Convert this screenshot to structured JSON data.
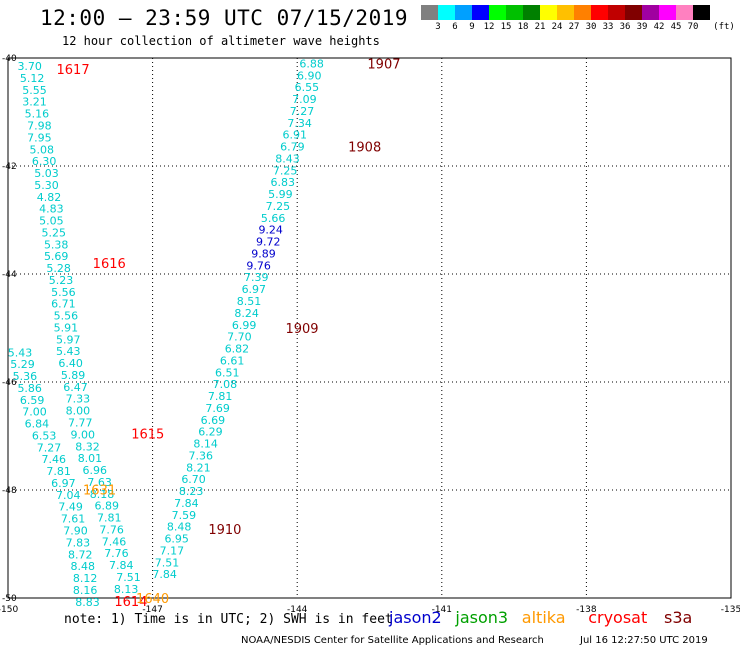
{
  "header": {
    "title": "12:00 – 23:59 UTC 07/15/2019",
    "subtitle": "12 hour collection of altimeter wave heights"
  },
  "colorbar": {
    "unit_label": "(ft)",
    "swatches": [
      {
        "color": "#808080",
        "label": "3"
      },
      {
        "color": "#00ffff",
        "label": "6"
      },
      {
        "color": "#00a0ff",
        "label": "9"
      },
      {
        "color": "#0000ff",
        "label": "12"
      },
      {
        "color": "#00ff00",
        "label": "15"
      },
      {
        "color": "#00c000",
        "label": "18"
      },
      {
        "color": "#008000",
        "label": "21"
      },
      {
        "color": "#ffff00",
        "label": "24"
      },
      {
        "color": "#ffc000",
        "label": "27"
      },
      {
        "color": "#ff8000",
        "label": "30"
      },
      {
        "color": "#ff0000",
        "label": "33"
      },
      {
        "color": "#c00000",
        "label": "36"
      },
      {
        "color": "#800000",
        "label": "39"
      },
      {
        "color": "#a000a0",
        "label": "42"
      },
      {
        "color": "#ff00ff",
        "label": "45"
      },
      {
        "color": "#ff80c0",
        "label": "70"
      },
      {
        "color": "#000000",
        "label": ""
      }
    ]
  },
  "map": {
    "lat_labels": [
      "-40",
      "-42",
      "-44",
      "-46",
      "-48",
      "-50"
    ],
    "lon_labels": [
      "-150",
      "-147",
      "-144",
      "-141",
      "-138",
      "-135"
    ],
    "lon_range": [
      -150,
      -135
    ],
    "lat_range": [
      -50,
      -40
    ],
    "colors": {
      "cyan": "#00cccc",
      "blue": "#0000cc",
      "red": "#ff0000",
      "darkred": "#800000",
      "orange": "#ff9900"
    },
    "tracks": [
      {
        "color": "cyan",
        "points": [
          {
            "lon": -149.55,
            "lat": -40.15,
            "v": "3.70"
          },
          {
            "lon": -149.5,
            "lat": -40.37,
            "v": "5.12"
          },
          {
            "lon": -149.45,
            "lat": -40.59,
            "v": "5.55"
          },
          {
            "lon": -149.45,
            "lat": -40.81,
            "v": "3.21"
          },
          {
            "lon": -149.4,
            "lat": -41.03,
            "v": "5.16"
          },
          {
            "lon": -149.35,
            "lat": -41.25,
            "v": "7.98"
          },
          {
            "lon": -149.35,
            "lat": -41.47,
            "v": "7.95"
          },
          {
            "lon": -149.3,
            "lat": -41.69,
            "v": "5.08"
          },
          {
            "lon": -149.25,
            "lat": -41.91,
            "v": "6.30"
          },
          {
            "lon": -149.2,
            "lat": -42.13,
            "v": "5.03"
          },
          {
            "lon": -149.2,
            "lat": -42.35,
            "v": "5.30"
          },
          {
            "lon": -149.15,
            "lat": -42.57,
            "v": "4.82"
          },
          {
            "lon": -149.1,
            "lat": -42.79,
            "v": "4.83"
          },
          {
            "lon": -149.1,
            "lat": -43.01,
            "v": "5.05"
          },
          {
            "lon": -149.05,
            "lat": -43.23,
            "v": "5.25"
          },
          {
            "lon": -149.0,
            "lat": -43.45,
            "v": "5.38"
          },
          {
            "lon": -149.0,
            "lat": -43.67,
            "v": "5.69"
          },
          {
            "lon": -148.95,
            "lat": -43.89,
            "v": "5.28"
          },
          {
            "lon": -148.9,
            "lat": -44.11,
            "v": "5.23"
          },
          {
            "lon": -148.85,
            "lat": -44.33,
            "v": "5.56"
          },
          {
            "lon": -148.85,
            "lat": -44.55,
            "v": "6.71"
          },
          {
            "lon": -148.8,
            "lat": -44.77,
            "v": "5.56"
          },
          {
            "lon": -148.8,
            "lat": -44.99,
            "v": "5.91"
          },
          {
            "lon": -148.75,
            "lat": -45.21,
            "v": "5.97"
          },
          {
            "lon": -148.75,
            "lat": -45.43,
            "v": "5.43"
          },
          {
            "lon": -148.7,
            "lat": -45.65,
            "v": "6.40"
          },
          {
            "lon": -148.65,
            "lat": -45.87,
            "v": "5.89"
          },
          {
            "lon": -148.6,
            "lat": -46.09,
            "v": "6.47"
          },
          {
            "lon": -148.55,
            "lat": -46.31,
            "v": "7.33"
          },
          {
            "lon": -148.55,
            "lat": -46.53,
            "v": "8.00"
          },
          {
            "lon": -148.5,
            "lat": -46.75,
            "v": "7.77"
          },
          {
            "lon": -148.45,
            "lat": -46.97,
            "v": "9.00"
          },
          {
            "lon": -148.35,
            "lat": -47.19,
            "v": "8.32"
          },
          {
            "lon": -148.3,
            "lat": -47.41,
            "v": "8.01"
          },
          {
            "lon": -148.2,
            "lat": -47.63,
            "v": "6.96"
          },
          {
            "lon": -148.1,
            "lat": -47.85,
            "v": "7.63"
          },
          {
            "lon": -148.05,
            "lat": -48.07,
            "v": "8.18"
          },
          {
            "lon": -147.95,
            "lat": -48.29,
            "v": "6.89"
          },
          {
            "lon": -147.9,
            "lat": -48.51,
            "v": "7.81"
          },
          {
            "lon": -147.85,
            "lat": -48.73,
            "v": "7.76"
          },
          {
            "lon": -147.8,
            "lat": -48.95,
            "v": "7.46"
          },
          {
            "lon": -147.75,
            "lat": -49.17,
            "v": "7.76"
          },
          {
            "lon": -147.65,
            "lat": -49.39,
            "v": "7.84"
          },
          {
            "lon": -147.5,
            "lat": -49.61,
            "v": "7.51"
          },
          {
            "lon": -147.55,
            "lat": -49.83,
            "v": "8.13"
          }
        ]
      },
      {
        "color": "cyan",
        "points": [
          {
            "lon": -149.75,
            "lat": -45.45,
            "v": "5.43"
          },
          {
            "lon": -149.7,
            "lat": -45.67,
            "v": "5.29"
          },
          {
            "lon": -149.65,
            "lat": -45.89,
            "v": "5.36"
          },
          {
            "lon": -149.55,
            "lat": -46.11,
            "v": "5.86"
          },
          {
            "lon": -149.5,
            "lat": -46.33,
            "v": "6.59"
          },
          {
            "lon": -149.45,
            "lat": -46.55,
            "v": "7.00"
          },
          {
            "lon": -149.4,
            "lat": -46.77,
            "v": "6.84"
          },
          {
            "lon": -149.25,
            "lat": -46.99,
            "v": "6.53"
          },
          {
            "lon": -149.15,
            "lat": -47.21,
            "v": "7.27"
          },
          {
            "lon": -149.05,
            "lat": -47.43,
            "v": "7.46"
          },
          {
            "lon": -148.95,
            "lat": -47.65,
            "v": "7.81"
          },
          {
            "lon": -148.85,
            "lat": -47.87,
            "v": "6.97"
          },
          {
            "lon": -148.75,
            "lat": -48.09,
            "v": "7.04"
          },
          {
            "lon": -148.7,
            "lat": -48.31,
            "v": "7.49"
          },
          {
            "lon": -148.65,
            "lat": -48.53,
            "v": "7.61"
          },
          {
            "lon": -148.6,
            "lat": -48.75,
            "v": "7.90"
          },
          {
            "lon": -148.55,
            "lat": -48.97,
            "v": "7.83"
          },
          {
            "lon": -148.5,
            "lat": -49.19,
            "v": "8.72"
          },
          {
            "lon": -148.45,
            "lat": -49.41,
            "v": "8.48"
          },
          {
            "lon": -148.4,
            "lat": -49.63,
            "v": "8.12"
          },
          {
            "lon": -148.4,
            "lat": -49.85,
            "v": "8.16"
          },
          {
            "lon": -148.35,
            "lat": -50.07,
            "v": "8.83"
          }
        ]
      },
      {
        "color": "cyan",
        "points": [
          {
            "lon": -143.7,
            "lat": -40.1,
            "v": "6.88"
          },
          {
            "lon": -143.75,
            "lat": -40.32,
            "v": "6.90"
          },
          {
            "lon": -143.8,
            "lat": -40.54,
            "v": "6.55"
          },
          {
            "lon": -143.85,
            "lat": -40.76,
            "v": "7.09"
          },
          {
            "lon": -143.9,
            "lat": -40.98,
            "v": "7.27"
          },
          {
            "lon": -143.95,
            "lat": -41.2,
            "v": "7.34"
          },
          {
            "lon": -144.05,
            "lat": -41.42,
            "v": "6.91"
          },
          {
            "lon": -144.1,
            "lat": -41.64,
            "v": "6.79"
          },
          {
            "lon": -144.2,
            "lat": -41.86,
            "v": "8.43"
          },
          {
            "lon": -144.25,
            "lat": -42.08,
            "v": "7.25"
          },
          {
            "lon": -144.3,
            "lat": -42.3,
            "v": "6.83"
          },
          {
            "lon": -144.35,
            "lat": -42.52,
            "v": "5.99"
          },
          {
            "lon": -144.4,
            "lat": -42.74,
            "v": "7.25"
          },
          {
            "lon": -144.5,
            "lat": -42.96,
            "v": "5.66"
          }
        ]
      },
      {
        "color": "blue",
        "points": [
          {
            "lon": -144.55,
            "lat": -43.18,
            "v": "9.24"
          },
          {
            "lon": -144.6,
            "lat": -43.4,
            "v": "9.72"
          },
          {
            "lon": -144.7,
            "lat": -43.62,
            "v": "9.89"
          },
          {
            "lon": -144.8,
            "lat": -43.84,
            "v": "9.76"
          }
        ]
      },
      {
        "color": "cyan",
        "points": [
          {
            "lon": -144.85,
            "lat": -44.06,
            "v": "7.39"
          },
          {
            "lon": -144.9,
            "lat": -44.28,
            "v": "6.97"
          },
          {
            "lon": -145.0,
            "lat": -44.5,
            "v": "8.51"
          },
          {
            "lon": -145.05,
            "lat": -44.72,
            "v": "8.24"
          },
          {
            "lon": -145.1,
            "lat": -44.94,
            "v": "6.99"
          },
          {
            "lon": -145.2,
            "lat": -45.16,
            "v": "7.70"
          },
          {
            "lon": -145.25,
            "lat": -45.38,
            "v": "6.82"
          },
          {
            "lon": -145.35,
            "lat": -45.6,
            "v": "6.61"
          },
          {
            "lon": -145.45,
            "lat": -45.82,
            "v": "6.51"
          },
          {
            "lon": -145.5,
            "lat": -46.04,
            "v": "7.08"
          },
          {
            "lon": -145.6,
            "lat": -46.26,
            "v": "7.81"
          },
          {
            "lon": -145.65,
            "lat": -46.48,
            "v": "7.69"
          },
          {
            "lon": -145.75,
            "lat": -46.7,
            "v": "6.69"
          },
          {
            "lon": -145.8,
            "lat": -46.92,
            "v": "6.29"
          },
          {
            "lon": -145.9,
            "lat": -47.14,
            "v": "8.14"
          },
          {
            "lon": -146.0,
            "lat": -47.36,
            "v": "7.36"
          },
          {
            "lon": -146.05,
            "lat": -47.58,
            "v": "8.21"
          },
          {
            "lon": -146.15,
            "lat": -47.8,
            "v": "6.70"
          },
          {
            "lon": -146.2,
            "lat": -48.02,
            "v": "8.23"
          },
          {
            "lon": -146.3,
            "lat": -48.24,
            "v": "7.84"
          },
          {
            "lon": -146.35,
            "lat": -48.46,
            "v": "7.59"
          },
          {
            "lon": -146.45,
            "lat": -48.68,
            "v": "8.48"
          },
          {
            "lon": -146.5,
            "lat": -48.9,
            "v": "6.95"
          },
          {
            "lon": -146.6,
            "lat": -49.12,
            "v": "7.17"
          },
          {
            "lon": -146.7,
            "lat": -49.34,
            "v": "7.51"
          },
          {
            "lon": -146.75,
            "lat": -49.56,
            "v": "7.84"
          }
        ]
      }
    ],
    "time_labels": [
      {
        "lon": -148.65,
        "lat": -40.2,
        "v": "1617",
        "color": "red"
      },
      {
        "lon": -147.9,
        "lat": -43.8,
        "v": "1616",
        "color": "red"
      },
      {
        "lon": -147.1,
        "lat": -46.95,
        "v": "1615",
        "color": "red"
      },
      {
        "lon": -148.1,
        "lat": -47.99,
        "v": "1631",
        "color": "orange"
      },
      {
        "lon": -147.45,
        "lat": -50.06,
        "v": "1614",
        "color": "red"
      },
      {
        "lon": -147.0,
        "lat": -50.0,
        "v": "1640",
        "color": "orange"
      },
      {
        "lon": -142.2,
        "lat": -40.1,
        "v": "1907",
        "color": "darkred"
      },
      {
        "lon": -142.6,
        "lat": -41.64,
        "v": "1908",
        "color": "darkred"
      },
      {
        "lon": -143.9,
        "lat": -45.0,
        "v": "1909",
        "color": "darkred"
      },
      {
        "lon": -145.5,
        "lat": -48.72,
        "v": "1910",
        "color": "darkred"
      }
    ]
  },
  "note": "note: 1) Time is in UTC; 2) SWH is in feet",
  "legend": [
    {
      "name": "jason2",
      "color": "#0000cc"
    },
    {
      "name": "jason3",
      "color": "#00a000"
    },
    {
      "name": "altika",
      "color": "#ff9900"
    },
    {
      "name": "cryosat",
      "color": "#ff0000"
    },
    {
      "name": "s3a",
      "color": "#800000"
    }
  ],
  "credit": "NOAA/NESDIS Center for Satellite Applications and Research",
  "timestamp": "Jul 16 12:27:50 UTC 2019"
}
